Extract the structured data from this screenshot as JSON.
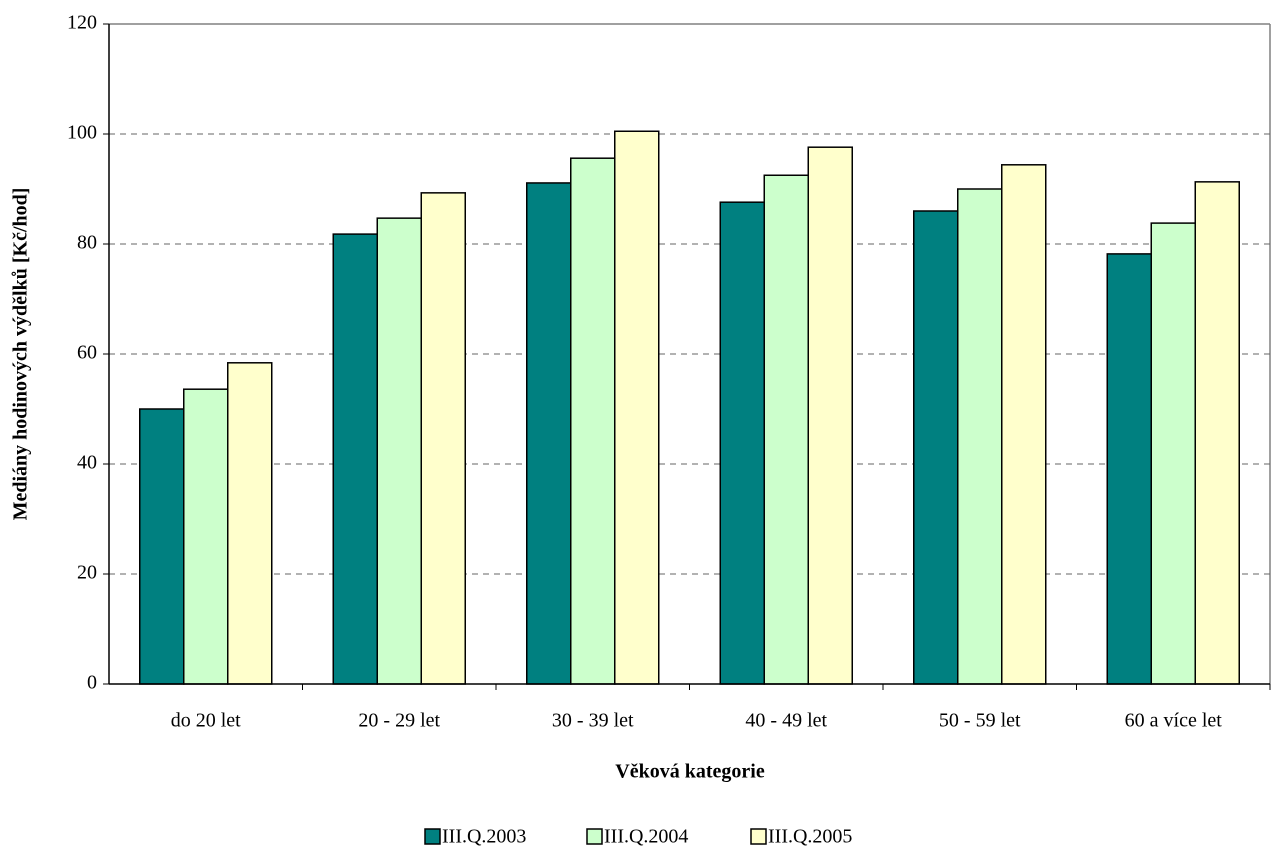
{
  "chart_data": {
    "type": "bar",
    "y_label": "Mediány hodinových výdělků [Kč/hod]",
    "x_label": "Věková kategorie",
    "categories": [
      "do 20 let",
      "20 - 29 let",
      "30 - 39 let",
      "40 - 49 let",
      "50 - 59 let",
      "60 a více let"
    ],
    "series": [
      {
        "name": "III.Q.2003",
        "color": "#008080",
        "values": [
          50.0,
          81.8,
          91.1,
          87.6,
          86.0,
          78.2
        ]
      },
      {
        "name": "III.Q.2004",
        "color": "#ccffcc",
        "values": [
          53.6,
          84.7,
          95.6,
          92.5,
          90.0,
          83.8
        ]
      },
      {
        "name": "III.Q.2005",
        "color": "#ffffcc",
        "values": [
          58.4,
          89.3,
          100.5,
          97.6,
          94.4,
          91.3
        ]
      }
    ],
    "ylim": [
      0,
      120
    ],
    "yticks": [
      0,
      20,
      40,
      60,
      80,
      100,
      120
    ],
    "grid": true,
    "legend": "bottom"
  }
}
